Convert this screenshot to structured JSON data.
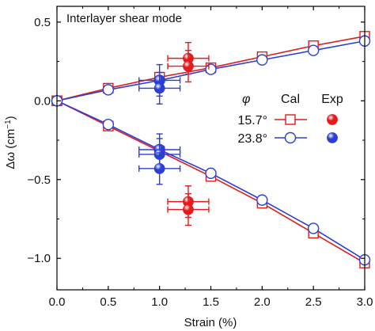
{
  "chart_data": {
    "type": "scatter",
    "title": "",
    "annotation": "Interlayer shear mode",
    "xlabel": "Strain (%)",
    "ylabel_parts": {
      "main": "Δω (cm",
      "sup": "−1",
      "close": ")"
    },
    "xlim": [
      0,
      3.0
    ],
    "ylim": [
      -1.2,
      0.6
    ],
    "xticks": [
      {
        "value": 0,
        "label": "0.0"
      },
      {
        "value": 0.5,
        "label": "0.5"
      },
      {
        "value": 1.0,
        "label": "1.0"
      },
      {
        "value": 1.5,
        "label": "1.5"
      },
      {
        "value": 2.0,
        "label": "2.0"
      },
      {
        "value": 2.5,
        "label": "2.5"
      },
      {
        "value": 3.0,
        "label": "3.0"
      }
    ],
    "yticks": [
      {
        "value": 0.5,
        "label": "0.5"
      },
      {
        "value": 0.0,
        "label": "0.0"
      },
      {
        "value": -0.5,
        "label": "−0.5"
      },
      {
        "value": -1.0,
        "label": "−1.0"
      }
    ],
    "grid": false,
    "legend": {
      "placement": "right",
      "angle_symbol": "φ",
      "cal_header": "Cal",
      "exp_header": "Exp",
      "rows": [
        {
          "label": "15.7°",
          "color": "#e41a1c",
          "marker": "square"
        },
        {
          "label": "23.8°",
          "color": "#2b3fd6",
          "marker": "circle"
        }
      ]
    },
    "series": [
      {
        "name": "15.7° Cal upper",
        "kind": "calc",
        "color": "#e41a1c",
        "marker": "square",
        "x": [
          0,
          0.5,
          1.0,
          1.5,
          2.0,
          2.5,
          3.0
        ],
        "y": [
          0,
          0.08,
          0.15,
          0.21,
          0.28,
          0.35,
          0.41
        ]
      },
      {
        "name": "23.8° Cal upper",
        "kind": "calc",
        "color": "#2b3fd6",
        "marker": "circle",
        "x": [
          0,
          0.5,
          1.0,
          1.5,
          2.0,
          2.5,
          3.0
        ],
        "y": [
          0,
          0.07,
          0.13,
          0.2,
          0.26,
          0.32,
          0.38
        ]
      },
      {
        "name": "15.7° Cal lower",
        "kind": "calc",
        "color": "#e41a1c",
        "marker": "square",
        "x": [
          0,
          0.5,
          1.0,
          1.5,
          2.0,
          2.5,
          3.0
        ],
        "y": [
          0,
          -0.16,
          -0.32,
          -0.48,
          -0.65,
          -0.84,
          -1.03
        ]
      },
      {
        "name": "23.8° Cal lower",
        "kind": "calc",
        "color": "#2b3fd6",
        "marker": "circle",
        "x": [
          0,
          0.5,
          1.0,
          1.5,
          2.0,
          2.5,
          3.0
        ],
        "y": [
          0,
          -0.15,
          -0.31,
          -0.46,
          -0.63,
          -0.81,
          -1.01
        ]
      },
      {
        "name": "15.7° Exp",
        "kind": "exp",
        "color": "#e41a1c",
        "points": [
          {
            "x": 1.28,
            "y": 0.27,
            "xerr": 0.2,
            "yerr": 0.1
          },
          {
            "x": 1.28,
            "y": 0.22,
            "xerr": 0.2,
            "yerr": 0.1
          },
          {
            "x": 1.28,
            "y": -0.64,
            "xerr": 0.2,
            "yerr": 0.1
          },
          {
            "x": 1.28,
            "y": -0.69,
            "xerr": 0.2,
            "yerr": 0.1
          }
        ]
      },
      {
        "name": "23.8° Exp",
        "kind": "exp",
        "color": "#2b3fd6",
        "points": [
          {
            "x": 1.0,
            "y": 0.13,
            "xerr": 0.2,
            "yerr": 0.1
          },
          {
            "x": 1.0,
            "y": 0.08,
            "xerr": 0.2,
            "yerr": 0.1
          },
          {
            "x": 1.0,
            "y": -0.31,
            "xerr": 0.2,
            "yerr": 0.1
          },
          {
            "x": 1.0,
            "y": -0.34,
            "xerr": 0.2,
            "yerr": 0.1
          },
          {
            "x": 1.0,
            "y": -0.43,
            "xerr": 0.2,
            "yerr": 0.1
          }
        ]
      }
    ]
  }
}
